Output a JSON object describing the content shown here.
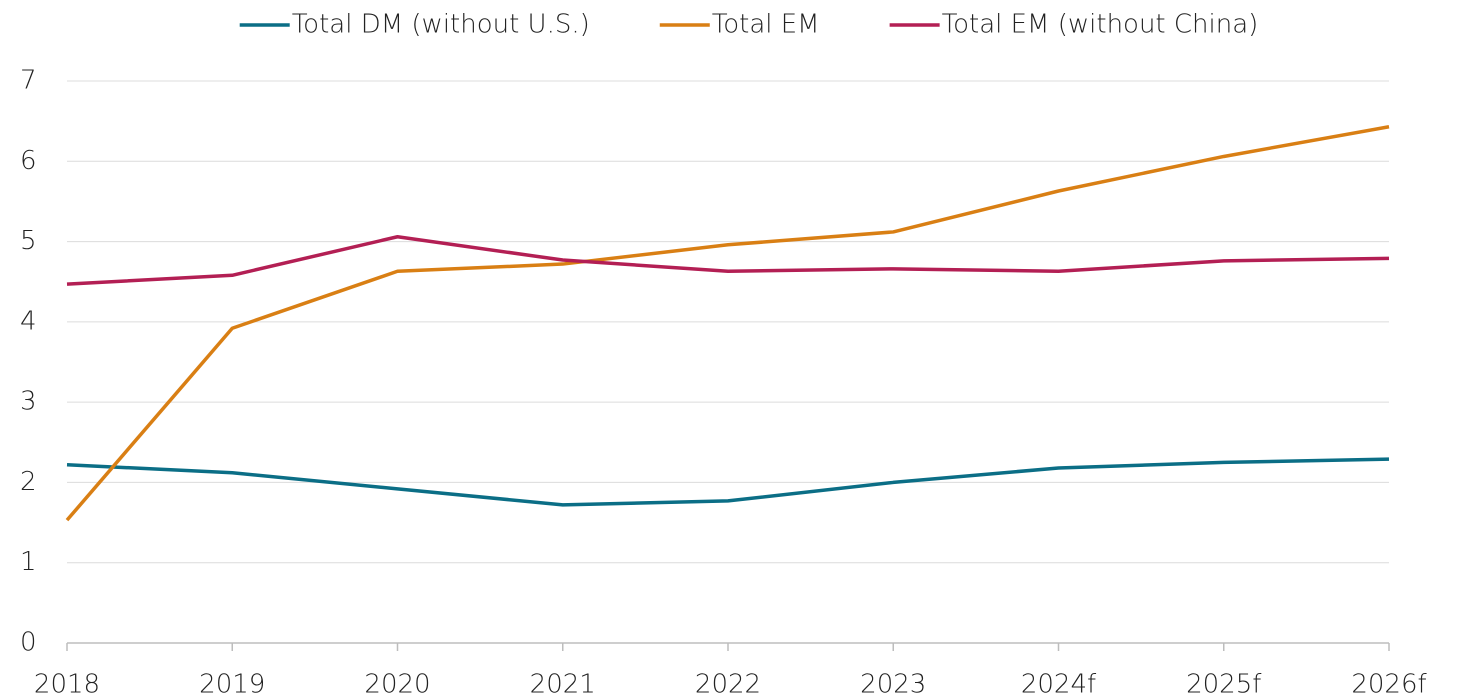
{
  "chart_data": {
    "type": "line",
    "categories": [
      "2018",
      "2019",
      "2020",
      "2021",
      "2022",
      "2023",
      "2024f",
      "2025f",
      "2026f"
    ],
    "series": [
      {
        "name": "Total DM (without U.S.)",
        "color": "#0b6e86",
        "values": [
          2.22,
          2.12,
          1.92,
          1.72,
          1.77,
          2.0,
          2.18,
          2.25,
          2.29
        ]
      },
      {
        "name": "Total EM",
        "color": "#d97f14",
        "values": [
          1.53,
          3.92,
          4.63,
          4.72,
          4.96,
          5.12,
          5.63,
          6.06,
          6.43
        ]
      },
      {
        "name": "Total EM (without China)",
        "color": "#b31f54",
        "values": [
          4.47,
          4.58,
          5.06,
          4.77,
          4.63,
          4.66,
          4.63,
          4.76,
          4.79
        ]
      }
    ],
    "ylim": [
      0,
      7
    ],
    "yticks": [
      0,
      1,
      2,
      3,
      4,
      5,
      6,
      7
    ],
    "grid": true,
    "legend": "top"
  }
}
